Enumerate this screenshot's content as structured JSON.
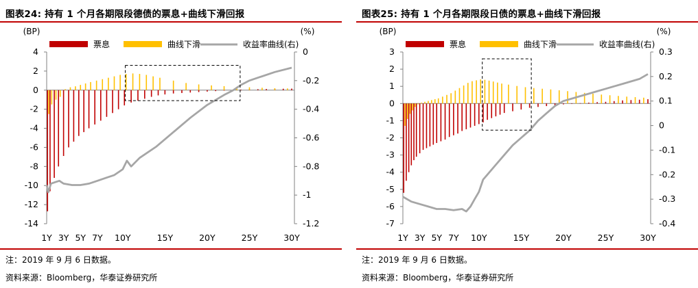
{
  "colors": {
    "coupon": "#c00000",
    "rolldown": "#ffc000",
    "curve": "#a6a6a6",
    "accent": "#c00000"
  },
  "panels": [
    {
      "title": "图表24:   持有 1 个月各期限段德债的票息+曲线下滑回报",
      "note": "注：2019 年 9 月 6 日数据。",
      "source": "资料来源：Bloomberg，华泰证券研究所",
      "left_unit": "(BP)",
      "right_unit": "(%)",
      "legend": [
        "票息",
        "曲线下滑",
        "收益率曲线(右)"
      ],
      "left_ticks": [
        "4",
        "2",
        "0",
        "-2",
        "-4",
        "-6",
        "-8",
        "-10",
        "-12",
        "-14"
      ],
      "right_ticks": [
        "0",
        "-0.2",
        "-0.4",
        "-0.6",
        "-0.8",
        "-1",
        "-1.2"
      ],
      "x_ticks": [
        "1Y",
        "3Y",
        "5Y",
        "7Y",
        "10Y",
        "15Y",
        "20Y",
        "25Y",
        "30Y"
      ]
    },
    {
      "title": "图表25:   持有 1 个月各期限段日债的票息+曲线下滑回报",
      "note": "注：2019 年 9 月 6 日数据。",
      "source": "资料来源：Bloomberg，华泰证券研究所",
      "left_unit": "(BP)",
      "right_unit": "(%)",
      "legend": [
        "票息",
        "曲线下滑",
        "收益率曲线(右)"
      ],
      "left_ticks": [
        "3",
        "2",
        "1",
        "0",
        "-1",
        "-2",
        "-3",
        "-4",
        "-5",
        "-6",
        "-7"
      ],
      "right_ticks": [
        "0.3",
        "0.2",
        "0.1",
        "0",
        "-0.1",
        "-0.2",
        "-0.3",
        "-0.4"
      ],
      "x_ticks": [
        "1Y",
        "3Y",
        "5Y",
        "7Y",
        "10Y",
        "15Y",
        "20Y",
        "25Y",
        "30Y"
      ]
    }
  ],
  "chart_data": [
    {
      "type": "bar",
      "x_unit": "years",
      "tick_years": [
        1,
        3,
        5,
        7,
        10,
        15,
        20,
        25,
        30
      ],
      "xlim": [
        1,
        30
      ],
      "left_ylim": [
        -14,
        4
      ],
      "right_ylim": [
        -1.2,
        0
      ],
      "series": [
        {
          "name": "票息",
          "axis": "left",
          "type": "bar",
          "x": [
            1.1,
            1.4,
            1.9,
            2.4,
            3,
            3.6,
            4.2,
            4.8,
            5.4,
            6,
            6.7,
            7.4,
            8.1,
            8.8,
            9.5,
            10.2,
            11,
            11.8,
            12.6,
            13.4,
            14.2,
            15,
            16,
            17,
            18,
            19,
            20,
            21,
            22,
            23,
            24,
            25,
            26,
            27,
            28,
            29,
            30
          ],
          "values": [
            -12.7,
            -10.6,
            -9.2,
            -8,
            -6.9,
            -6,
            -5.4,
            -4.8,
            -4.4,
            -4,
            -3.6,
            -3.2,
            -2.8,
            -2.4,
            -2,
            -1.6,
            -1.3,
            -1.1,
            -0.9,
            -0.7,
            -0.55,
            -0.45,
            -0.35,
            -0.3,
            -0.25,
            -0.2,
            -0.15,
            -0.1,
            -0.05,
            0,
            0.05,
            0.08,
            0.1,
            0.12,
            0.14,
            0.15,
            0.16
          ]
        },
        {
          "name": "曲线下滑",
          "axis": "left",
          "type": "bar",
          "x": [
            1.25,
            1.6,
            2.1,
            2.6,
            3.2,
            3.8,
            4.4,
            5,
            5.6,
            6.2,
            6.9,
            7.6,
            8.3,
            9,
            9.7,
            10.4,
            11.2,
            12,
            12.8,
            13.6,
            14.4,
            16,
            17.5,
            19,
            20.5,
            22,
            23.5,
            25,
            26.5,
            28,
            29.5
          ],
          "values": [
            -2.5,
            -1.5,
            -1,
            -0.7,
            0.1,
            0.3,
            0.4,
            0.55,
            0.7,
            0.85,
            1,
            1.15,
            1.3,
            1.45,
            1.6,
            1.7,
            1.75,
            1.7,
            1.6,
            1.45,
            1.3,
            1,
            0.75,
            0.6,
            0.5,
            0.42,
            0.35,
            0.3,
            0.25,
            0.2,
            0.18
          ]
        },
        {
          "name": "收益率曲线(右)",
          "axis": "right",
          "type": "line",
          "x": [
            1,
            1.2,
            1.5,
            2,
            2.5,
            3,
            4,
            5,
            6,
            7,
            8,
            9,
            10,
            10.5,
            11,
            12,
            14,
            16,
            18,
            20,
            22,
            23,
            24,
            25,
            26,
            28,
            30
          ],
          "values": [
            -0.93,
            -0.98,
            -0.92,
            -0.91,
            -0.9,
            -0.92,
            -0.93,
            -0.93,
            -0.92,
            -0.9,
            -0.88,
            -0.86,
            -0.82,
            -0.76,
            -0.8,
            -0.74,
            -0.66,
            -0.56,
            -0.46,
            -0.37,
            -0.3,
            -0.27,
            -0.23,
            -0.2,
            -0.18,
            -0.14,
            -0.11
          ]
        }
      ]
    },
    {
      "type": "bar",
      "x_unit": "years",
      "tick_years": [
        1,
        3,
        5,
        7,
        10,
        15,
        20,
        25,
        30
      ],
      "xlim": [
        1,
        30
      ],
      "left_ylim": [
        -7,
        3
      ],
      "right_ylim": [
        -0.4,
        0.3
      ],
      "series": [
        {
          "name": "票息",
          "axis": "left",
          "type": "bar",
          "x": [
            1.1,
            1.4,
            1.7,
            2,
            2.3,
            2.6,
            3,
            3.4,
            3.8,
            4.2,
            4.6,
            5,
            5.5,
            6,
            6.5,
            7,
            7.5,
            8,
            8.5,
            9,
            9.5,
            10,
            10.5,
            11,
            11.5,
            12,
            12.5,
            13,
            14,
            15,
            16,
            17,
            18,
            19,
            20,
            21,
            22,
            23,
            24,
            25,
            26,
            27,
            28,
            29,
            30
          ],
          "values": [
            -5.2,
            -4.5,
            -4,
            -3.6,
            -3.3,
            -3.1,
            -2.9,
            -2.7,
            -2.6,
            -2.5,
            -2.4,
            -2.3,
            -2.2,
            -2.1,
            -1.95,
            -1.85,
            -1.75,
            -1.6,
            -1.5,
            -1.4,
            -1.3,
            -1.2,
            -1.1,
            -0.95,
            -0.85,
            -0.75,
            -0.65,
            -0.55,
            -0.45,
            -0.35,
            -0.25,
            -0.2,
            -0.15,
            -0.1,
            -0.05,
            0,
            0.02,
            0.05,
            0.08,
            0.1,
            0.14,
            0.18,
            0.2,
            0.22,
            0.25
          ]
        },
        {
          "name": "曲线下滑",
          "axis": "left",
          "type": "bar",
          "x": [
            1.25,
            1.55,
            1.85,
            2.15,
            2.45,
            2.8,
            3.2,
            3.6,
            4,
            4.4,
            4.8,
            5.2,
            5.7,
            6.2,
            6.7,
            7.2,
            7.7,
            8.2,
            8.7,
            9.2,
            9.7,
            10.2,
            10.7,
            11.2,
            11.7,
            12.2,
            12.7,
            13.5,
            14.5,
            15.5,
            16.5,
            17.5,
            18.5,
            19.5,
            20.5,
            21.5,
            22.5,
            23.5,
            24.5,
            25.5,
            26.5,
            27.5,
            28.5,
            29.5
          ],
          "values": [
            -1.3,
            -0.9,
            -0.6,
            -0.4,
            -0.2,
            -0.05,
            0.05,
            0.1,
            0.15,
            0.2,
            0.25,
            0.3,
            0.4,
            0.5,
            0.6,
            0.75,
            0.9,
            1.05,
            1.2,
            1.3,
            1.35,
            1.4,
            1.38,
            1.33,
            1.28,
            1.22,
            1.16,
            1.1,
            1.02,
            0.95,
            0.9,
            0.86,
            0.82,
            0.77,
            0.72,
            0.67,
            0.62,
            0.57,
            0.52,
            0.48,
            0.44,
            0.4,
            0.37,
            0.34
          ]
        },
        {
          "name": "收益率曲线(右)",
          "axis": "right",
          "type": "line",
          "x": [
            1,
            2,
            3,
            4,
            5,
            6,
            7,
            8,
            8.5,
            9,
            9.5,
            10,
            10.5,
            11,
            12,
            13,
            14,
            15,
            16,
            17,
            18,
            19,
            20,
            21,
            22,
            23,
            24,
            25,
            26,
            27,
            28,
            29,
            30
          ],
          "values": [
            -0.29,
            -0.31,
            -0.32,
            -0.33,
            -0.34,
            -0.34,
            -0.345,
            -0.34,
            -0.35,
            -0.33,
            -0.3,
            -0.27,
            -0.22,
            -0.2,
            -0.16,
            -0.12,
            -0.08,
            -0.05,
            -0.02,
            0.02,
            0.05,
            0.08,
            0.1,
            0.11,
            0.12,
            0.13,
            0.14,
            0.15,
            0.16,
            0.17,
            0.18,
            0.19,
            0.21
          ]
        }
      ]
    }
  ]
}
